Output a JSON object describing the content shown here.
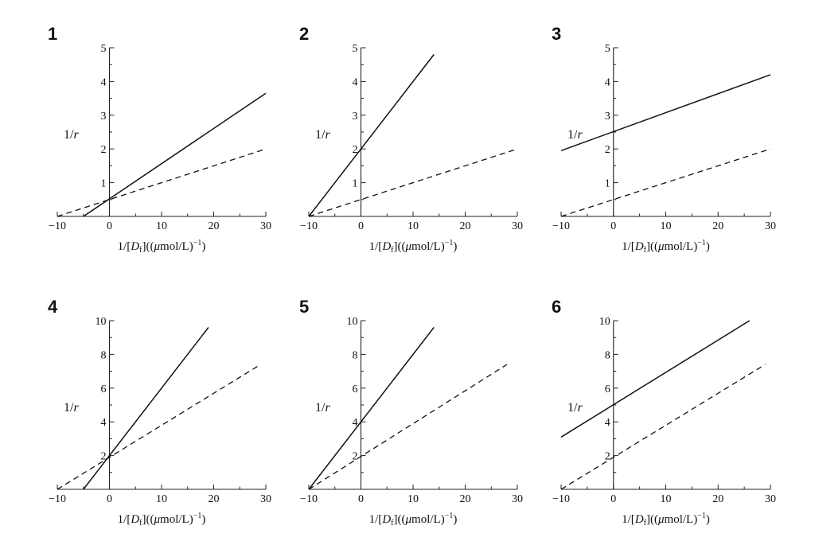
{
  "chart_data": [
    {
      "type": "line",
      "panel_label": "1",
      "ylabel_prefix": "1/",
      "ylabel_var": "r",
      "xlabel_parts": [
        "1/[",
        "D",
        "f",
        "]((",
        "μ",
        "mol/L)",
        "−1",
        ")"
      ],
      "xlim": [
        -10,
        30
      ],
      "ylim": [
        0,
        5
      ],
      "x_ticks": [
        "−10",
        "0",
        "10",
        "20",
        "30"
      ],
      "y_ticks": [
        "1",
        "2",
        "3",
        "4",
        "5"
      ],
      "series": [
        {
          "name": "solid",
          "style": "solid",
          "x": [
            -5,
            30
          ],
          "y": [
            0,
            3.65
          ]
        },
        {
          "name": "dashed",
          "style": "dashed",
          "x": [
            -10,
            30
          ],
          "y": [
            0,
            2.0
          ]
        }
      ]
    },
    {
      "type": "line",
      "panel_label": "2",
      "ylabel_prefix": "1/",
      "ylabel_var": "r",
      "xlabel_parts": [
        "1/[",
        "D",
        "f",
        "]((",
        "μ",
        "mol/L)",
        "−1",
        ")"
      ],
      "xlim": [
        -10,
        30
      ],
      "ylim": [
        0,
        5
      ],
      "x_ticks": [
        "−10",
        "0",
        "10",
        "20",
        "30"
      ],
      "y_ticks": [
        "1",
        "2",
        "3",
        "4",
        "5"
      ],
      "series": [
        {
          "name": "solid",
          "style": "solid",
          "x": [
            -10,
            14
          ],
          "y": [
            0,
            4.8
          ]
        },
        {
          "name": "dashed",
          "style": "dashed",
          "x": [
            -10,
            30
          ],
          "y": [
            0,
            2.0
          ]
        }
      ]
    },
    {
      "type": "line",
      "panel_label": "3",
      "ylabel_prefix": "1/",
      "ylabel_var": "r",
      "xlabel_parts": [
        "1/[",
        "D",
        "f",
        "]((",
        "μ",
        "mol/L)",
        "−1",
        ")"
      ],
      "xlim": [
        -10,
        30
      ],
      "ylim": [
        0,
        5
      ],
      "x_ticks": [
        "−10",
        "0",
        "10",
        "20",
        "30"
      ],
      "y_ticks": [
        "1",
        "2",
        "3",
        "4",
        "5"
      ],
      "series": [
        {
          "name": "solid",
          "style": "solid",
          "x": [
            -10,
            30
          ],
          "y": [
            1.95,
            4.2
          ]
        },
        {
          "name": "dashed",
          "style": "dashed",
          "x": [
            -10,
            30
          ],
          "y": [
            0,
            2.0
          ]
        }
      ]
    },
    {
      "type": "line",
      "panel_label": "4",
      "ylabel_prefix": "1/",
      "ylabel_var": "r",
      "xlabel_parts": [
        "1/[",
        "D",
        "f",
        "]((",
        "μ",
        "mol/L)",
        "−1",
        ")"
      ],
      "xlim": [
        -10,
        30
      ],
      "ylim": [
        0,
        10
      ],
      "x_ticks": [
        "−10",
        "0",
        "10",
        "20",
        "30"
      ],
      "y_ticks": [
        "2",
        "4",
        "6",
        "8",
        "10"
      ],
      "series": [
        {
          "name": "solid",
          "style": "solid",
          "x": [
            -5,
            19
          ],
          "y": [
            0,
            9.6
          ]
        },
        {
          "name": "dashed",
          "style": "dashed",
          "x": [
            -10,
            29
          ],
          "y": [
            0,
            7.4
          ]
        }
      ]
    },
    {
      "type": "line",
      "panel_label": "5",
      "ylabel_prefix": "1/",
      "ylabel_var": "r",
      "xlabel_parts": [
        "1/[",
        "D",
        "f",
        "]((",
        "μ",
        "mol/L)",
        "−1",
        ")"
      ],
      "xlim": [
        -10,
        30
      ],
      "ylim": [
        0,
        10
      ],
      "x_ticks": [
        "−10",
        "0",
        "10",
        "20",
        "30"
      ],
      "y_ticks": [
        "2",
        "4",
        "6",
        "8",
        "10"
      ],
      "series": [
        {
          "name": "solid",
          "style": "solid",
          "x": [
            -10,
            14
          ],
          "y": [
            0,
            9.6
          ]
        },
        {
          "name": "dashed",
          "style": "dashed",
          "x": [
            -10,
            28
          ],
          "y": [
            0,
            7.4
          ]
        }
      ]
    },
    {
      "type": "line",
      "panel_label": "6",
      "ylabel_prefix": "1/",
      "ylabel_var": "r",
      "xlabel_parts": [
        "1/[",
        "D",
        "f",
        "]((",
        "μ",
        "mol/L)",
        "−1",
        ")"
      ],
      "xlim": [
        -10,
        30
      ],
      "ylim": [
        0,
        10
      ],
      "x_ticks": [
        "−10",
        "0",
        "10",
        "20",
        "30"
      ],
      "y_ticks": [
        "2",
        "4",
        "6",
        "8",
        "10"
      ],
      "series": [
        {
          "name": "solid",
          "style": "solid",
          "x": [
            -10,
            26
          ],
          "y": [
            3.1,
            10.0
          ]
        },
        {
          "name": "dashed",
          "style": "dashed",
          "x": [
            -10,
            29
          ],
          "y": [
            0,
            7.4
          ]
        }
      ]
    }
  ]
}
